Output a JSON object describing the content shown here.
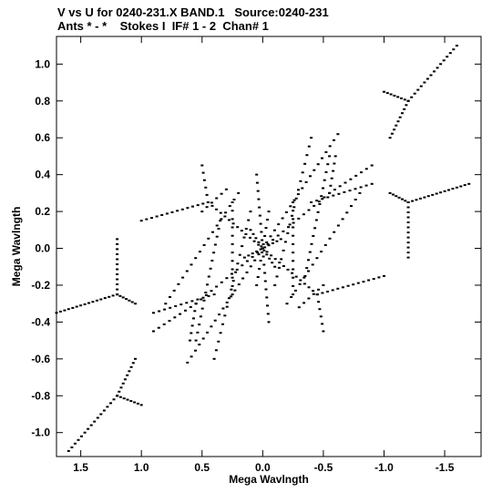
{
  "header": {
    "line1": "V vs U for 0240-231.X BAND.1   Source:0240-231",
    "line2": "Ants * - *    Stokes I  IF# 1 - 2  Chan# 1"
  },
  "chart_data": {
    "type": "scatter",
    "title": "V vs U for 0240-231.X BAND.1   Source:0240-231",
    "subtitle": "Ants * - *    Stokes I  IF# 1 - 2  Chan# 1",
    "xlabel": "Mega Wavlngth",
    "ylabel": "Mega Wavlngth",
    "xlim": [
      1.7,
      -1.8
    ],
    "ylim": [
      -1.13,
      1.15
    ],
    "x_reversed": true,
    "xticks": [
      1.5,
      1.0,
      0.5,
      0.0,
      -0.5,
      -1.0,
      -1.5
    ],
    "xtick_labels": [
      "1.5",
      "1.0",
      "0.5",
      "0.0",
      "-0.5",
      "-1.0",
      "-1.5"
    ],
    "yticks": [
      1.0,
      0.8,
      0.6,
      0.4,
      0.2,
      0.0,
      -0.2,
      -0.4,
      -0.6,
      -0.8,
      -1.0
    ],
    "ytick_labels": [
      "1.0",
      "0.8",
      "0.6",
      "0.4",
      "0.2",
      "0.0",
      "-0.2",
      "-0.4",
      "-0.6",
      "-0.8",
      "-1.0"
    ],
    "grid": false,
    "marker_color": "#000000",
    "tracks": [
      {
        "from": [
          -1.2,
          0.8
        ],
        "to": [
          -1.6,
          1.1
        ],
        "n": 16
      },
      {
        "from": [
          -1.2,
          0.8
        ],
        "to": [
          -1.0,
          0.85
        ],
        "n": 8
      },
      {
        "from": [
          -1.2,
          0.8
        ],
        "to": [
          -1.05,
          0.6
        ],
        "n": 10
      },
      {
        "from": [
          1.2,
          -0.8
        ],
        "to": [
          1.6,
          -1.1
        ],
        "n": 16
      },
      {
        "from": [
          1.2,
          -0.8
        ],
        "to": [
          1.0,
          -0.85
        ],
        "n": 8
      },
      {
        "from": [
          1.2,
          -0.8
        ],
        "to": [
          1.05,
          -0.6
        ],
        "n": 10
      },
      {
        "from": [
          -1.2,
          0.25
        ],
        "to": [
          -1.7,
          0.35
        ],
        "n": 16
      },
      {
        "from": [
          -1.2,
          0.25
        ],
        "to": [
          -1.05,
          0.3
        ],
        "n": 7
      },
      {
        "from": [
          -1.2,
          0.25
        ],
        "to": [
          -1.2,
          -0.05
        ],
        "n": 12
      },
      {
        "from": [
          1.2,
          -0.25
        ],
        "to": [
          1.7,
          -0.35
        ],
        "n": 16
      },
      {
        "from": [
          1.2,
          -0.25
        ],
        "to": [
          1.05,
          -0.3
        ],
        "n": 7
      },
      {
        "from": [
          1.2,
          -0.25
        ],
        "to": [
          1.2,
          0.05
        ],
        "n": 12
      },
      {
        "from": [
          0.0,
          0.0
        ],
        "to": [
          -0.62,
          0.62
        ],
        "n": 20
      },
      {
        "from": [
          0.0,
          0.0
        ],
        "to": [
          0.62,
          -0.62
        ],
        "n": 20
      },
      {
        "from": [
          0.0,
          0.0
        ],
        "to": [
          0.45,
          0.25
        ],
        "n": 14
      },
      {
        "from": [
          0.0,
          0.0
        ],
        "to": [
          -0.45,
          -0.25
        ],
        "n": 14
      },
      {
        "from": [
          0.0,
          0.0
        ],
        "to": [
          -0.55,
          0.3
        ],
        "n": 14
      },
      {
        "from": [
          0.0,
          0.0
        ],
        "to": [
          0.55,
          -0.3
        ],
        "n": 14
      },
      {
        "from": [
          0.0,
          0.0
        ],
        "to": [
          0.05,
          0.4
        ],
        "n": 10
      },
      {
        "from": [
          0.0,
          0.0
        ],
        "to": [
          -0.05,
          -0.4
        ],
        "n": 10
      },
      {
        "from": [
          0.45,
          0.25
        ],
        "to": [
          1.0,
          0.15
        ],
        "n": 14
      },
      {
        "from": [
          -0.45,
          -0.25
        ],
        "to": [
          -1.0,
          -0.15
        ],
        "n": 14
      },
      {
        "from": [
          0.45,
          0.25
        ],
        "to": [
          0.5,
          0.45
        ],
        "n": 6
      },
      {
        "from": [
          -0.45,
          -0.25
        ],
        "to": [
          -0.5,
          -0.45
        ],
        "n": 6
      },
      {
        "from": [
          -0.55,
          0.3
        ],
        "to": [
          -0.9,
          0.45
        ],
        "n": 9
      },
      {
        "from": [
          0.55,
          -0.3
        ],
        "to": [
          0.9,
          -0.45
        ],
        "n": 9
      },
      {
        "from": [
          -0.55,
          0.3
        ],
        "to": [
          -0.6,
          0.5
        ],
        "n": 6
      },
      {
        "from": [
          0.55,
          -0.3
        ],
        "to": [
          0.6,
          -0.5
        ],
        "n": 6
      },
      {
        "from": [
          0.2,
          0.3
        ],
        "to": [
          0.8,
          -0.3
        ],
        "n": 18
      },
      {
        "from": [
          -0.2,
          -0.3
        ],
        "to": [
          -0.8,
          0.3
        ],
        "n": 18
      },
      {
        "from": [
          0.35,
          0.15
        ],
        "to": [
          0.55,
          -0.5
        ],
        "n": 16
      },
      {
        "from": [
          -0.35,
          -0.15
        ],
        "to": [
          -0.55,
          0.5
        ],
        "n": 16
      },
      {
        "from": [
          0.4,
          -0.25
        ],
        "to": [
          0.9,
          -0.35
        ],
        "n": 12
      },
      {
        "from": [
          -0.4,
          0.25
        ],
        "to": [
          -0.9,
          0.35
        ],
        "n": 12
      },
      {
        "from": [
          0.1,
          0.2
        ],
        "to": [
          0.4,
          -0.6
        ],
        "n": 18
      },
      {
        "from": [
          -0.1,
          -0.2
        ],
        "to": [
          -0.4,
          0.6
        ],
        "n": 18
      },
      {
        "from": [
          0.5,
          0.2
        ],
        "to": [
          0.3,
          0.32
        ],
        "n": 6
      },
      {
        "from": [
          -0.5,
          -0.2
        ],
        "to": [
          -0.3,
          -0.32
        ],
        "n": 6
      },
      {
        "from": [
          -0.25,
          0.25
        ],
        "to": [
          -0.25,
          -0.25
        ],
        "n": 12
      },
      {
        "from": [
          0.25,
          -0.25
        ],
        "to": [
          0.25,
          0.25
        ],
        "n": 12
      },
      {
        "from": [
          0.1,
          0.1
        ],
        "to": [
          -0.1,
          -0.1
        ],
        "n": 10
      },
      {
        "from": [
          0.15,
          -0.05
        ],
        "to": [
          -0.15,
          0.05
        ],
        "n": 10
      },
      {
        "from": [
          -0.05,
          0.2
        ],
        "to": [
          0.05,
          -0.2
        ],
        "n": 10
      }
    ]
  }
}
